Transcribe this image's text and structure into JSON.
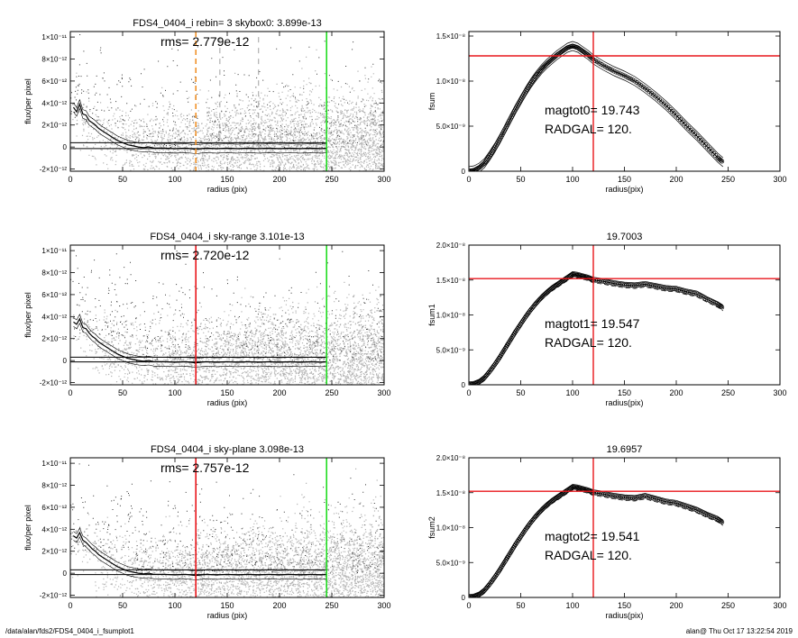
{
  "footer": {
    "path": "/data/alan/fds2/FDS4_0404_i_fsumplot1",
    "stamp": "alan@  Thu Oct 17 13:22:54 2019"
  },
  "colors": {
    "scatter": "#b4b4b4",
    "red": "#e8161b",
    "green": "#22dd22",
    "orange": "#f0922b",
    "profile": "#000000"
  },
  "chart_data": [
    {
      "type": "scatter",
      "title": "FDS4_0404_i rebin= 3    skybox0:  3.899e-13",
      "annotation": "rms= 2.779e-12",
      "xlabel": "radius (pix)",
      "ylabel": "flux/per pixel",
      "xlim": [
        0,
        300
      ],
      "ylim": [
        -2.2e-12,
        1.05e-11
      ],
      "x_ticks": [
        0,
        50,
        100,
        150,
        200,
        250,
        300
      ],
      "x_tick_labels": [
        "0",
        "50",
        "100",
        "150",
        "200",
        "250",
        "300"
      ],
      "y_ticks": [
        -2e-12,
        0,
        2e-12,
        4e-12,
        6e-12,
        8e-12,
        1e-11
      ],
      "y_tick_labels": [
        "-2×10⁻¹²",
        "0",
        "2×10⁻¹²",
        "4×10⁻¹²",
        "6×10⁻¹²",
        "8×10⁻¹²",
        "1×10⁻¹¹"
      ],
      "hlines": [
        3.9e-13,
        -1.4e-13
      ],
      "vlines": [
        {
          "x": 120,
          "color": "orange",
          "style": "dashed"
        },
        {
          "x": 245,
          "color": "green",
          "style": "solid"
        }
      ],
      "gray_dashes": [
        143,
        180
      ],
      "profile": {
        "x": [
          3,
          6,
          9,
          12,
          15,
          18,
          21,
          24,
          27,
          30,
          35,
          40,
          45,
          50,
          55,
          60,
          65,
          70,
          75,
          80,
          90,
          100,
          110,
          120,
          130,
          140,
          150,
          160,
          170,
          180,
          190,
          200,
          210,
          220,
          230,
          240,
          245
        ],
        "y": [
          3.6e-12,
          3.2e-12,
          3.9e-12,
          3e-12,
          2.9e-12,
          2.4e-12,
          2.2e-12,
          2e-12,
          1.7e-12,
          1.5e-12,
          1.2e-12,
          9e-13,
          6e-13,
          4e-13,
          2e-13,
          1e-13,
          0,
          -5e-14,
          0,
          -1e-13,
          -1e-13,
          -1.5e-13,
          -1e-13,
          -2e-13,
          -1e-13,
          -1.5e-13,
          -1e-13,
          -1.5e-13,
          -1e-13,
          -1.5e-13,
          -1e-13,
          -1.5e-13,
          -1e-13,
          -1.5e-13,
          -1e-13,
          -1.5e-13,
          -1e-13
        ]
      }
    },
    {
      "type": "line",
      "title": "",
      "xlabel": "radius(pix)",
      "ylabel": "fsum",
      "xlim": [
        0,
        300
      ],
      "ylim": [
        0,
        1.55e-08
      ],
      "x_ticks": [
        0,
        50,
        100,
        150,
        200,
        250,
        300
      ],
      "x_tick_labels": [
        "0",
        "50",
        "100",
        "150",
        "200",
        "250",
        "300"
      ],
      "y_ticks": [
        0,
        5e-09,
        1e-08,
        1.5e-08
      ],
      "y_tick_labels": [
        "0",
        "5.0×10⁻⁹",
        "1.0×10⁻⁸",
        "1.5×10⁻⁸"
      ],
      "vline": 120,
      "hline": 1.28e-08,
      "text_lines": [
        "magtot0=  19.743",
        "RADGAL=    120."
      ],
      "curve": {
        "x": [
          0,
          5,
          10,
          15,
          20,
          25,
          30,
          35,
          40,
          45,
          50,
          55,
          60,
          65,
          70,
          75,
          80,
          85,
          90,
          95,
          100,
          105,
          110,
          115,
          120,
          130,
          140,
          150,
          160,
          170,
          180,
          190,
          200,
          210,
          220,
          230,
          240,
          245
        ],
        "y": [
          0,
          1e-10,
          4e-10,
          9e-10,
          1.7e-09,
          2.6e-09,
          3.6e-09,
          4.7e-09,
          5.8e-09,
          6.9e-09,
          7.9e-09,
          8.9e-09,
          9.8e-09,
          1.06e-08,
          1.13e-08,
          1.19e-08,
          1.24e-08,
          1.29e-08,
          1.33e-08,
          1.37e-08,
          1.39e-08,
          1.37e-08,
          1.33e-08,
          1.29e-08,
          1.24e-08,
          1.17e-08,
          1.11e-08,
          1.06e-08,
          1e-08,
          9.2e-09,
          8.3e-09,
          7.3e-09,
          6.2e-09,
          5e-09,
          3.9e-09,
          2.7e-09,
          1.5e-09,
          1e-09
        ]
      },
      "envelope": 5e-10
    },
    {
      "type": "scatter",
      "title": "FDS4_0404_i sky-range  3.101e-13",
      "annotation": "rms= 2.720e-12",
      "xlabel": "radius (pix)",
      "ylabel": "flux/per pixel",
      "xlim": [
        0,
        300
      ],
      "ylim": [
        -2.2e-12,
        1.05e-11
      ],
      "x_ticks": [
        0,
        50,
        100,
        150,
        200,
        250,
        300
      ],
      "x_tick_labels": [
        "0",
        "50",
        "100",
        "150",
        "200",
        "250",
        "300"
      ],
      "y_ticks": [
        -2e-12,
        0,
        2e-12,
        4e-12,
        6e-12,
        8e-12,
        1e-11
      ],
      "y_tick_labels": [
        "-2×10⁻¹²",
        "0",
        "2×10⁻¹²",
        "4×10⁻¹²",
        "6×10⁻¹²",
        "8×10⁻¹²",
        "1×10⁻¹¹"
      ],
      "hlines": [
        3.1e-13,
        -1.2e-13
      ],
      "vlines": [
        {
          "x": 120,
          "color": "red",
          "style": "solid"
        },
        {
          "x": 245,
          "color": "green",
          "style": "solid"
        }
      ],
      "gray_dashes": [],
      "profile": {
        "x": [
          3,
          6,
          9,
          12,
          15,
          18,
          21,
          24,
          27,
          30,
          35,
          40,
          45,
          50,
          55,
          60,
          65,
          70,
          75,
          80,
          90,
          100,
          110,
          120,
          130,
          140,
          150,
          160,
          170,
          180,
          190,
          200,
          210,
          220,
          230,
          240,
          245
        ],
        "y": [
          3.5e-12,
          3.3e-12,
          3.8e-12,
          3e-12,
          2.9e-12,
          2.5e-12,
          2.2e-12,
          2e-12,
          1.7e-12,
          1.5e-12,
          1.2e-12,
          9e-13,
          6e-13,
          4e-13,
          2e-13,
          1e-13,
          0,
          -5e-14,
          0,
          -1e-13,
          -1e-13,
          -1.5e-13,
          -1e-13,
          -2e-13,
          -1e-13,
          -1.5e-13,
          -1e-13,
          -1.5e-13,
          -1e-13,
          -1.5e-13,
          -1e-13,
          -1.5e-13,
          -1e-13,
          -1.5e-13,
          -1e-13,
          -1.5e-13,
          -1e-13
        ]
      }
    },
    {
      "type": "line",
      "title": "19.7003",
      "xlabel": "radius(pix)",
      "ylabel": "fsum1",
      "xlim": [
        0,
        300
      ],
      "ylim": [
        0,
        2e-08
      ],
      "x_ticks": [
        0,
        50,
        100,
        150,
        200,
        250,
        300
      ],
      "x_tick_labels": [
        "0",
        "50",
        "100",
        "150",
        "200",
        "250",
        "300"
      ],
      "y_ticks": [
        0,
        5e-09,
        1e-08,
        1.5e-08,
        2e-08
      ],
      "y_tick_labels": [
        "0",
        "5.0×10⁻⁹",
        "1.0×10⁻⁸",
        "1.5×10⁻⁸",
        "2.0×10⁻⁸"
      ],
      "vline": 120,
      "hline": 1.52e-08,
      "text_lines": [
        "magtot1=  19.547",
        "RADGAL=    120."
      ],
      "curve": {
        "x": [
          0,
          5,
          10,
          15,
          20,
          25,
          30,
          35,
          40,
          45,
          50,
          55,
          60,
          65,
          70,
          75,
          80,
          85,
          90,
          95,
          100,
          105,
          110,
          115,
          120,
          130,
          140,
          150,
          160,
          170,
          180,
          190,
          200,
          210,
          220,
          230,
          240,
          245
        ],
        "y": [
          0,
          1e-10,
          4e-10,
          1e-09,
          1.9e-09,
          2.9e-09,
          4e-09,
          5.2e-09,
          6.4e-09,
          7.6e-09,
          8.7e-09,
          9.8e-09,
          1.08e-08,
          1.17e-08,
          1.25e-08,
          1.32e-08,
          1.38e-08,
          1.43e-08,
          1.48e-08,
          1.53e-08,
          1.58e-08,
          1.57e-08,
          1.55e-08,
          1.53e-08,
          1.5e-08,
          1.48e-08,
          1.45e-08,
          1.43e-08,
          1.42e-08,
          1.44e-08,
          1.41e-08,
          1.38e-08,
          1.37e-08,
          1.33e-08,
          1.3e-08,
          1.22e-08,
          1.15e-08,
          1.1e-08
        ]
      },
      "envelope": 4e-10
    },
    {
      "type": "scatter",
      "title": "FDS4_0404_i sky-plane  3.098e-13",
      "annotation": "rms= 2.757e-12",
      "xlabel": "radius (pix)",
      "ylabel": "flux/per pixel",
      "xlim": [
        0,
        300
      ],
      "ylim": [
        -2.2e-12,
        1.05e-11
      ],
      "x_ticks": [
        0,
        50,
        100,
        150,
        200,
        250,
        300
      ],
      "x_tick_labels": [
        "0",
        "50",
        "100",
        "150",
        "200",
        "250",
        "300"
      ],
      "y_ticks": [
        -2e-12,
        0,
        2e-12,
        4e-12,
        6e-12,
        8e-12,
        1e-11
      ],
      "y_tick_labels": [
        "-2×10⁻¹²",
        "0",
        "2×10⁻¹²",
        "4×10⁻¹²",
        "6×10⁻¹²",
        "8×10⁻¹²",
        "1×10⁻¹¹"
      ],
      "hlines": [
        3.1e-13,
        -1.2e-13
      ],
      "vlines": [
        {
          "x": 120,
          "color": "red",
          "style": "solid"
        },
        {
          "x": 245,
          "color": "green",
          "style": "solid"
        }
      ],
      "gray_dashes": [],
      "profile": {
        "x": [
          3,
          6,
          9,
          12,
          15,
          18,
          21,
          24,
          27,
          30,
          35,
          40,
          45,
          50,
          55,
          60,
          65,
          70,
          75,
          80,
          90,
          100,
          110,
          120,
          130,
          140,
          150,
          160,
          170,
          180,
          190,
          200,
          210,
          220,
          230,
          240,
          245
        ],
        "y": [
          3.4e-12,
          3.2e-12,
          3.7e-12,
          3e-12,
          2.8e-12,
          2.5e-12,
          2.2e-12,
          2e-12,
          1.7e-12,
          1.5e-12,
          1.2e-12,
          9e-13,
          6e-13,
          4e-13,
          2e-13,
          1e-13,
          0,
          -5e-14,
          0,
          -1e-13,
          -1e-13,
          -1.5e-13,
          -1e-13,
          -2e-13,
          -1e-13,
          -1.5e-13,
          -1e-13,
          -1.5e-13,
          -1e-13,
          -1.5e-13,
          -1e-13,
          -1.5e-13,
          -1e-13,
          -1.5e-13,
          -1e-13,
          -1.5e-13,
          -1e-13
        ]
      }
    },
    {
      "type": "line",
      "title": "19.6957",
      "xlabel": "radius(pix)",
      "ylabel": "fsum2",
      "xlim": [
        0,
        300
      ],
      "ylim": [
        0,
        2e-08
      ],
      "x_ticks": [
        0,
        50,
        100,
        150,
        200,
        250,
        300
      ],
      "x_tick_labels": [
        "0",
        "50",
        "100",
        "150",
        "200",
        "250",
        "300"
      ],
      "y_ticks": [
        0,
        5e-09,
        1e-08,
        1.5e-08,
        2e-08
      ],
      "y_tick_labels": [
        "0",
        "5.0×10⁻⁹",
        "1.0×10⁻⁸",
        "1.5×10⁻⁸",
        "2.0×10⁻⁸"
      ],
      "vline": 120,
      "hline": 1.52e-08,
      "text_lines": [
        "magtot2=  19.541",
        "RADGAL=    120."
      ],
      "curve": {
        "x": [
          0,
          5,
          10,
          15,
          20,
          25,
          30,
          35,
          40,
          45,
          50,
          55,
          60,
          65,
          70,
          75,
          80,
          85,
          90,
          95,
          100,
          105,
          110,
          115,
          120,
          130,
          140,
          150,
          160,
          170,
          180,
          190,
          200,
          210,
          220,
          230,
          240,
          245
        ],
        "y": [
          0,
          1e-10,
          4e-10,
          1e-09,
          1.9e-09,
          2.9e-09,
          4e-09,
          5.2e-09,
          6.4e-09,
          7.6e-09,
          8.7e-09,
          9.8e-09,
          1.08e-08,
          1.17e-08,
          1.25e-08,
          1.32e-08,
          1.38e-08,
          1.43e-08,
          1.48e-08,
          1.53e-08,
          1.58e-08,
          1.57e-08,
          1.55e-08,
          1.53e-08,
          1.5e-08,
          1.48e-08,
          1.45e-08,
          1.43e-08,
          1.42e-08,
          1.45e-08,
          1.41e-08,
          1.37e-08,
          1.35e-08,
          1.3e-08,
          1.25e-08,
          1.18e-08,
          1.12e-08,
          1.07e-08
        ]
      },
      "envelope": 4e-10
    }
  ]
}
